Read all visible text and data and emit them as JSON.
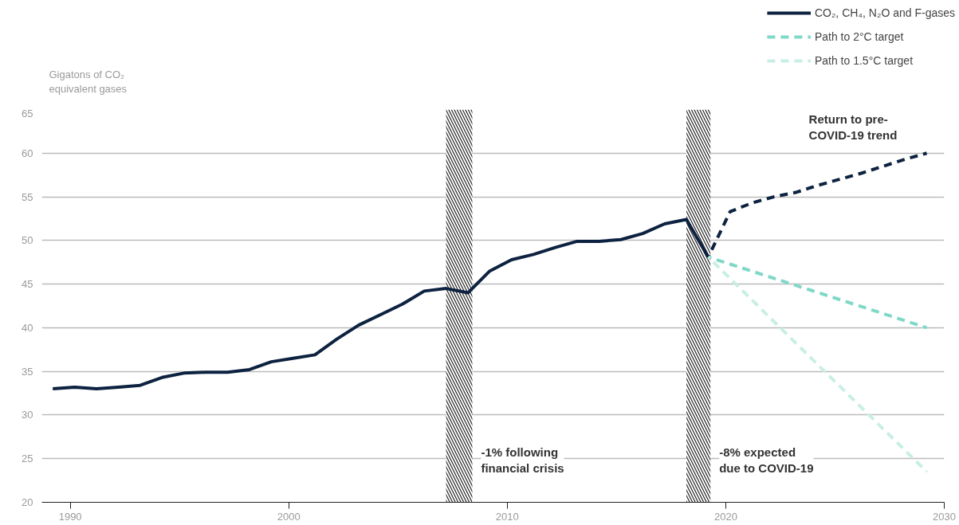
{
  "chart_data": {
    "type": "line",
    "ylabel": "Gigatons of CO₂\nequivalent gases",
    "xlim": [
      1988.7,
      2030
    ],
    "xticks": [
      1990,
      2000,
      2010,
      2020,
      2030
    ],
    "ylim": [
      20,
      65
    ],
    "yticks": [
      20,
      25,
      30,
      35,
      40,
      45,
      50,
      55,
      60,
      65
    ],
    "grid": "y",
    "legend": "top right",
    "series": [
      {
        "name": "CO₂, CH₄, N₂O and F-gases",
        "color": "#0d2240",
        "line_style": "solid",
        "x": [
          1989.2,
          1990.2,
          1991.2,
          1992.2,
          1993.2,
          1994.2,
          1995.2,
          1996.2,
          1997.2,
          1998.2,
          1999.2,
          2000.2,
          2001.2,
          2002.2,
          2003.2,
          2004.2,
          2005.2,
          2006.2,
          2007.2,
          2008.2,
          2009.2,
          2010.2,
          2011.2,
          2012.2,
          2013.2,
          2014.2,
          2015.2,
          2016.2,
          2017.2,
          2018.2,
          2019.2
        ],
        "values": [
          33.0,
          33.2,
          33.0,
          33.2,
          33.4,
          34.3,
          34.8,
          34.9,
          34.9,
          35.2,
          36.1,
          36.5,
          36.9,
          38.7,
          40.3,
          41.5,
          42.7,
          44.2,
          44.5,
          44.0,
          46.5,
          47.8,
          48.4,
          49.2,
          49.9,
          49.9,
          50.1,
          50.8,
          51.9,
          52.4,
          48.1
        ]
      },
      {
        "color": "#0d2240",
        "line_style": "dashed",
        "x": [
          2019.2,
          2020.2,
          2021.2,
          2022.2,
          2023.2,
          2024.2,
          2025.2,
          2026.2,
          2027.2,
          2028.2,
          2029.2
        ],
        "values": [
          48.1,
          53.3,
          54.3,
          55.0,
          55.5,
          56.3,
          57.0,
          57.7,
          58.5,
          59.3,
          60.0
        ]
      },
      {
        "name": "Path to 2°C target",
        "color": "#7fd8c8",
        "line_style": "dashed",
        "x": [
          2019.2,
          2029.2
        ],
        "values": [
          48.1,
          40.0
        ]
      },
      {
        "name": "Path to 1.5°C target",
        "color": "#c8eee6",
        "line_style": "dashed",
        "x": [
          2019.2,
          2029.2
        ],
        "values": [
          48.1,
          23.5
        ]
      }
    ],
    "bands": [
      {
        "axis": "x",
        "from": 2007.2,
        "to": 2008.4,
        "label": "-1% following\nfinancial crisis"
      },
      {
        "axis": "x",
        "from": 2018.2,
        "to": 2019.3,
        "label": "-8% expected\ndue to COVID-19"
      }
    ],
    "annotations": [
      "Return to pre-\nCOVID-19 trend"
    ]
  }
}
